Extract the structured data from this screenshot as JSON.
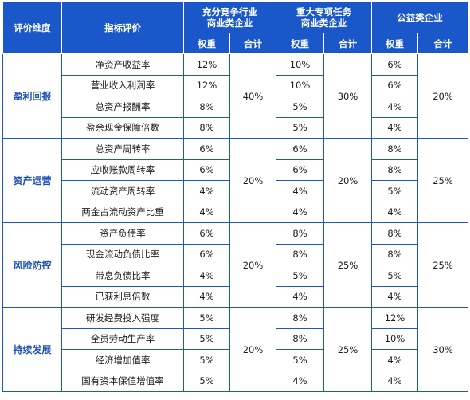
{
  "header": {
    "dimension": "评价维度",
    "indicator": "指标评价",
    "groups": [
      "充分竞争行业\n商业类企业",
      "重大专项任务\n商业类企业",
      "公益类企业"
    ],
    "weight": "权重",
    "total": "合计"
  },
  "sections": [
    {
      "dimension": "盈利回报",
      "rows": [
        {
          "name": "净资产收益率",
          "w": [
            "12%",
            "10%",
            "6%"
          ]
        },
        {
          "name": "营业收入利润率",
          "w": [
            "12%",
            "10%",
            "6%"
          ]
        },
        {
          "name": "总资产报酬率",
          "w": [
            "8%",
            "5%",
            "4%"
          ]
        },
        {
          "name": "盈余现金保障倍数",
          "w": [
            "8%",
            "5%",
            "4%"
          ]
        }
      ],
      "totals": [
        "40%",
        "30%",
        "20%"
      ]
    },
    {
      "dimension": "资产运营",
      "rows": [
        {
          "name": "总资产周转率",
          "w": [
            "6%",
            "6%",
            "8%"
          ]
        },
        {
          "name": "应收账款周转率",
          "w": [
            "6%",
            "6%",
            "8%"
          ]
        },
        {
          "name": "流动资产周转率",
          "w": [
            "4%",
            "4%",
            "5%"
          ]
        },
        {
          "name": "两金占流动资产比重",
          "w": [
            "4%",
            "4%",
            "4%"
          ]
        }
      ],
      "totals": [
        "20%",
        "20%",
        "25%"
      ]
    },
    {
      "dimension": "风险防控",
      "rows": [
        {
          "name": "资产负债率",
          "w": [
            "6%",
            "8%",
            "8%"
          ]
        },
        {
          "name": "现金流动负债比率",
          "w": [
            "6%",
            "8%",
            "8%"
          ]
        },
        {
          "name": "带息负债比率",
          "w": [
            "4%",
            "5%",
            "5%"
          ]
        },
        {
          "name": "已获利息倍数",
          "w": [
            "4%",
            "4%",
            "4%"
          ]
        }
      ],
      "totals": [
        "20%",
        "25%",
        "25%"
      ]
    },
    {
      "dimension": "持续发展",
      "rows": [
        {
          "name": "研发经费投入强度",
          "w": [
            "5%",
            "8%",
            "12%"
          ]
        },
        {
          "name": "全员劳动生产率",
          "w": [
            "5%",
            "8%",
            "10%"
          ]
        },
        {
          "name": "经济增加值率",
          "w": [
            "5%",
            "5%",
            "4%"
          ]
        },
        {
          "name": "国有资本保值增值率",
          "w": [
            "5%",
            "4%",
            "4%"
          ]
        }
      ],
      "totals": [
        "20%",
        "25%",
        "30%"
      ]
    }
  ],
  "colors": {
    "header_bg": "#1a57c8",
    "border": "#1a57c8",
    "dimension_text": "#1b4fb3"
  }
}
